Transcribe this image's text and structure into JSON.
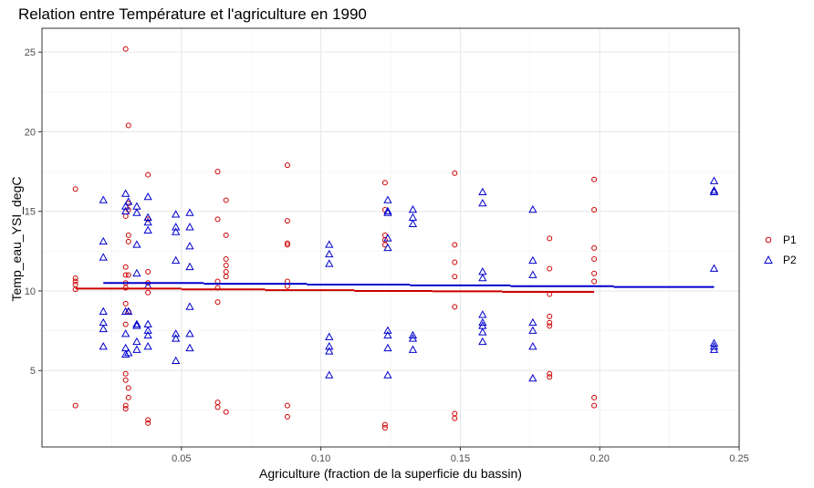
{
  "chart_data": {
    "type": "scatter",
    "title": "Relation entre Température et l'agriculture en 1990",
    "xlabel": "Agriculture (fraction de la superficie du bassin)",
    "ylabel": "Temp_eau_YSI_degC",
    "xlim": [
      0.0,
      0.25
    ],
    "ylim": [
      0.2,
      26.5
    ],
    "xticks": [
      0.05,
      0.1,
      0.15,
      0.2,
      0.25
    ],
    "xtick_labels": [
      "0.05",
      "0.10",
      "0.15",
      "0.20",
      "0.25"
    ],
    "yticks": [
      5,
      10,
      15,
      20,
      25
    ],
    "ytick_labels": [
      "5",
      "10",
      "15",
      "20",
      "25"
    ],
    "grid": true,
    "legend_position": "right",
    "series": [
      {
        "name": "P1",
        "color": "#cc0000",
        "marker": "circle",
        "points": [
          [
            0.012,
            16.4
          ],
          [
            0.012,
            10.8
          ],
          [
            0.012,
            10.6
          ],
          [
            0.012,
            10.4
          ],
          [
            0.012,
            10.1
          ],
          [
            0.012,
            2.8
          ],
          [
            0.03,
            25.2
          ],
          [
            0.03,
            14.7
          ],
          [
            0.03,
            11.5
          ],
          [
            0.03,
            11.0
          ],
          [
            0.03,
            10.5
          ],
          [
            0.03,
            10.2
          ],
          [
            0.03,
            9.2
          ],
          [
            0.03,
            7.9
          ],
          [
            0.03,
            4.8
          ],
          [
            0.03,
            4.4
          ],
          [
            0.03,
            2.8
          ],
          [
            0.03,
            2.6
          ],
          [
            0.031,
            20.4
          ],
          [
            0.031,
            15.5
          ],
          [
            0.031,
            15.1
          ],
          [
            0.031,
            13.5
          ],
          [
            0.031,
            13.1
          ],
          [
            0.031,
            11.0
          ],
          [
            0.031,
            8.7
          ],
          [
            0.031,
            3.9
          ],
          [
            0.031,
            3.3
          ],
          [
            0.038,
            17.3
          ],
          [
            0.038,
            14.5
          ],
          [
            0.038,
            11.2
          ],
          [
            0.038,
            10.5
          ],
          [
            0.038,
            9.9
          ],
          [
            0.038,
            1.9
          ],
          [
            0.038,
            1.7
          ],
          [
            0.063,
            17.5
          ],
          [
            0.063,
            14.5
          ],
          [
            0.063,
            10.6
          ],
          [
            0.063,
            10.2
          ],
          [
            0.063,
            9.3
          ],
          [
            0.063,
            3.0
          ],
          [
            0.063,
            2.7
          ],
          [
            0.066,
            15.7
          ],
          [
            0.066,
            13.5
          ],
          [
            0.066,
            12.0
          ],
          [
            0.066,
            11.6
          ],
          [
            0.066,
            11.2
          ],
          [
            0.066,
            10.9
          ],
          [
            0.066,
            2.4
          ],
          [
            0.088,
            17.9
          ],
          [
            0.088,
            14.4
          ],
          [
            0.088,
            13.0
          ],
          [
            0.088,
            12.9
          ],
          [
            0.088,
            10.6
          ],
          [
            0.088,
            10.3
          ],
          [
            0.088,
            2.8
          ],
          [
            0.088,
            2.1
          ],
          [
            0.123,
            16.8
          ],
          [
            0.123,
            15.1
          ],
          [
            0.123,
            13.5
          ],
          [
            0.123,
            13.2
          ],
          [
            0.123,
            12.9
          ],
          [
            0.123,
            1.6
          ],
          [
            0.123,
            1.4
          ],
          [
            0.148,
            17.4
          ],
          [
            0.148,
            12.9
          ],
          [
            0.148,
            11.8
          ],
          [
            0.148,
            10.9
          ],
          [
            0.148,
            9.0
          ],
          [
            0.148,
            2.3
          ],
          [
            0.148,
            2.0
          ],
          [
            0.182,
            13.3
          ],
          [
            0.182,
            11.4
          ],
          [
            0.182,
            9.8
          ],
          [
            0.182,
            8.4
          ],
          [
            0.182,
            8.0
          ],
          [
            0.182,
            7.8
          ],
          [
            0.182,
            4.8
          ],
          [
            0.182,
            4.6
          ],
          [
            0.198,
            17.0
          ],
          [
            0.198,
            15.1
          ],
          [
            0.198,
            12.7
          ],
          [
            0.198,
            12.0
          ],
          [
            0.198,
            11.1
          ],
          [
            0.198,
            10.6
          ],
          [
            0.198,
            3.3
          ],
          [
            0.198,
            2.8
          ]
        ]
      },
      {
        "name": "P2",
        "color": "#0000cc",
        "marker": "triangle",
        "points": [
          [
            0.022,
            15.7
          ],
          [
            0.022,
            13.1
          ],
          [
            0.022,
            12.1
          ],
          [
            0.022,
            8.7
          ],
          [
            0.022,
            8.0
          ],
          [
            0.022,
            7.6
          ],
          [
            0.022,
            6.5
          ],
          [
            0.03,
            16.1
          ],
          [
            0.03,
            15.3
          ],
          [
            0.03,
            15.0
          ],
          [
            0.03,
            8.7
          ],
          [
            0.03,
            7.3
          ],
          [
            0.03,
            6.4
          ],
          [
            0.03,
            6.0
          ],
          [
            0.031,
            15.6
          ],
          [
            0.031,
            8.7
          ],
          [
            0.031,
            6.1
          ],
          [
            0.034,
            15.3
          ],
          [
            0.034,
            14.9
          ],
          [
            0.034,
            12.9
          ],
          [
            0.034,
            11.1
          ],
          [
            0.034,
            7.9
          ],
          [
            0.034,
            7.8
          ],
          [
            0.034,
            6.8
          ],
          [
            0.034,
            6.3
          ],
          [
            0.038,
            15.9
          ],
          [
            0.038,
            14.6
          ],
          [
            0.038,
            14.3
          ],
          [
            0.038,
            13.8
          ],
          [
            0.038,
            10.3
          ],
          [
            0.038,
            7.9
          ],
          [
            0.038,
            7.5
          ],
          [
            0.038,
            7.2
          ],
          [
            0.038,
            6.5
          ],
          [
            0.048,
            14.8
          ],
          [
            0.048,
            14.0
          ],
          [
            0.048,
            13.7
          ],
          [
            0.048,
            11.9
          ],
          [
            0.048,
            7.3
          ],
          [
            0.048,
            7.0
          ],
          [
            0.048,
            5.6
          ],
          [
            0.053,
            14.9
          ],
          [
            0.053,
            14.0
          ],
          [
            0.053,
            12.8
          ],
          [
            0.053,
            11.5
          ],
          [
            0.053,
            9.0
          ],
          [
            0.053,
            7.3
          ],
          [
            0.053,
            6.4
          ],
          [
            0.103,
            12.9
          ],
          [
            0.103,
            12.3
          ],
          [
            0.103,
            11.7
          ],
          [
            0.103,
            7.1
          ],
          [
            0.103,
            6.5
          ],
          [
            0.103,
            6.2
          ],
          [
            0.103,
            4.7
          ],
          [
            0.124,
            15.7
          ],
          [
            0.124,
            15.0
          ],
          [
            0.124,
            14.9
          ],
          [
            0.124,
            13.3
          ],
          [
            0.124,
            12.7
          ],
          [
            0.124,
            7.5
          ],
          [
            0.124,
            7.2
          ],
          [
            0.124,
            6.4
          ],
          [
            0.124,
            4.7
          ],
          [
            0.133,
            15.1
          ],
          [
            0.133,
            14.6
          ],
          [
            0.133,
            14.2
          ],
          [
            0.133,
            7.2
          ],
          [
            0.133,
            7.0
          ],
          [
            0.133,
            6.3
          ],
          [
            0.158,
            16.2
          ],
          [
            0.158,
            15.5
          ],
          [
            0.158,
            11.2
          ],
          [
            0.158,
            10.8
          ],
          [
            0.158,
            8.5
          ],
          [
            0.158,
            8.0
          ],
          [
            0.158,
            7.8
          ],
          [
            0.158,
            7.4
          ],
          [
            0.158,
            6.8
          ],
          [
            0.176,
            15.1
          ],
          [
            0.176,
            11.9
          ],
          [
            0.176,
            11.0
          ],
          [
            0.176,
            8.0
          ],
          [
            0.176,
            7.5
          ],
          [
            0.176,
            6.5
          ],
          [
            0.176,
            4.5
          ],
          [
            0.241,
            16.9
          ],
          [
            0.241,
            16.3
          ],
          [
            0.241,
            16.2
          ],
          [
            0.241,
            11.4
          ],
          [
            0.241,
            6.7
          ],
          [
            0.241,
            6.5
          ],
          [
            0.241,
            6.3
          ]
        ]
      }
    ],
    "trend_lines": [
      {
        "series": "P1",
        "color": "#cc0000",
        "steps": [
          [
            0.012,
            10.15
          ],
          [
            0.05,
            10.1
          ],
          [
            0.08,
            10.05
          ],
          [
            0.112,
            10.0
          ],
          [
            0.14,
            9.98
          ],
          [
            0.165,
            9.94
          ],
          [
            0.198,
            9.9
          ]
        ]
      },
      {
        "series": "P2",
        "color": "#0000cc",
        "steps": [
          [
            0.022,
            10.5
          ],
          [
            0.058,
            10.45
          ],
          [
            0.095,
            10.4
          ],
          [
            0.132,
            10.35
          ],
          [
            0.168,
            10.3
          ],
          [
            0.205,
            10.25
          ],
          [
            0.241,
            10.2
          ]
        ]
      }
    ]
  }
}
